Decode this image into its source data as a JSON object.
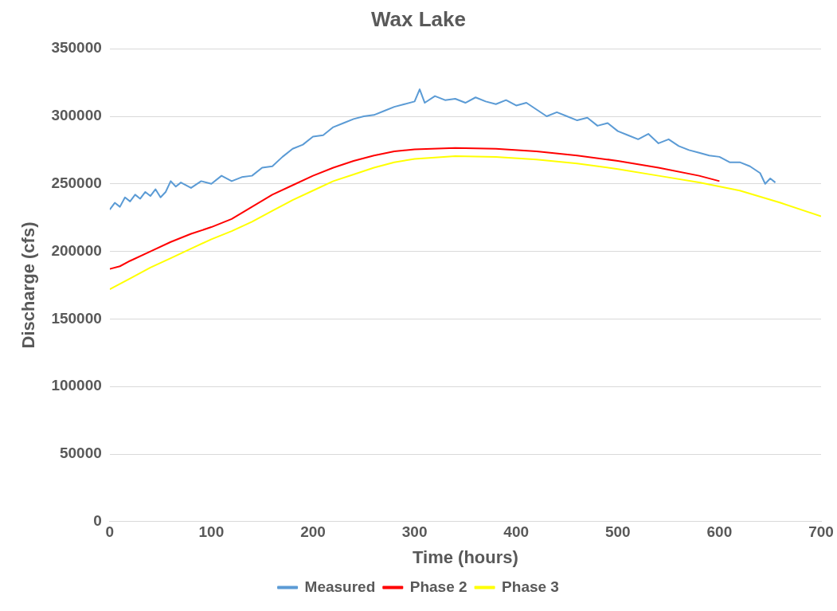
{
  "chart_data": {
    "type": "line",
    "title": "Wax Lake",
    "xlabel": "Time (hours)",
    "ylabel": "Discharge (cfs)",
    "xlim": [
      0,
      700
    ],
    "xticks": [
      0,
      100,
      200,
      300,
      400,
      500,
      600,
      700
    ],
    "ylim": [
      0,
      350000
    ],
    "yticks": [
      0,
      50000,
      100000,
      150000,
      200000,
      250000,
      300000,
      350000
    ],
    "grid": "y",
    "legend": "bottom",
    "marker": "none",
    "line_style": "solid",
    "series": [
      {
        "name": "Measured",
        "color": "#5b9bd5",
        "x": [
          0,
          5,
          10,
          15,
          20,
          25,
          30,
          35,
          40,
          45,
          50,
          55,
          60,
          65,
          70,
          80,
          90,
          100,
          110,
          120,
          130,
          140,
          150,
          160,
          170,
          180,
          190,
          200,
          210,
          220,
          230,
          240,
          250,
          260,
          270,
          280,
          290,
          300,
          305,
          310,
          320,
          330,
          340,
          350,
          360,
          370,
          380,
          390,
          400,
          410,
          420,
          430,
          440,
          450,
          460,
          470,
          480,
          490,
          500,
          510,
          520,
          530,
          540,
          550,
          560,
          570,
          580,
          590,
          600,
          610,
          620,
          630,
          640,
          645,
          650,
          655
        ],
        "values": [
          231000,
          236000,
          233000,
          240000,
          237000,
          242000,
          239000,
          244000,
          241000,
          246000,
          240000,
          244000,
          252000,
          248000,
          251000,
          247000,
          252000,
          250000,
          256000,
          252000,
          255000,
          256000,
          262000,
          263000,
          270000,
          276000,
          279000,
          285000,
          286000,
          292000,
          295000,
          298000,
          300000,
          301000,
          304000,
          307000,
          309000,
          311000,
          320000,
          310000,
          315000,
          312000,
          313000,
          310000,
          314000,
          311000,
          309000,
          312000,
          308000,
          310000,
          305000,
          300000,
          303000,
          300000,
          297000,
          299000,
          293000,
          295000,
          289000,
          286000,
          283000,
          287000,
          280000,
          283000,
          278000,
          275000,
          273000,
          271000,
          270000,
          266000,
          266000,
          263000,
          258000,
          250000,
          254000,
          251000
        ]
      },
      {
        "name": "Phase 2",
        "color": "#ff0000",
        "x": [
          0,
          10,
          20,
          40,
          60,
          80,
          100,
          120,
          140,
          160,
          180,
          200,
          220,
          240,
          260,
          280,
          300,
          340,
          380,
          420,
          460,
          500,
          540,
          580,
          600
        ],
        "values": [
          187000,
          189000,
          193000,
          200000,
          207000,
          213000,
          218000,
          224000,
          233000,
          242000,
          249000,
          256000,
          262000,
          267000,
          271000,
          274000,
          275500,
          276500,
          276000,
          274000,
          271000,
          267000,
          262000,
          256000,
          252000
        ]
      },
      {
        "name": "Phase 3",
        "color": "#ffff00",
        "x": [
          0,
          10,
          20,
          40,
          60,
          80,
          100,
          120,
          140,
          160,
          180,
          200,
          220,
          240,
          260,
          280,
          300,
          340,
          380,
          420,
          460,
          500,
          540,
          580,
          620,
          660,
          700
        ],
        "values": [
          172000,
          176000,
          180000,
          188000,
          195000,
          202000,
          209000,
          215000,
          222000,
          230000,
          238000,
          245000,
          252000,
          257000,
          262000,
          266000,
          268500,
          270500,
          270000,
          268000,
          265000,
          261000,
          256000,
          251000,
          245000,
          236000,
          226000
        ]
      }
    ]
  }
}
